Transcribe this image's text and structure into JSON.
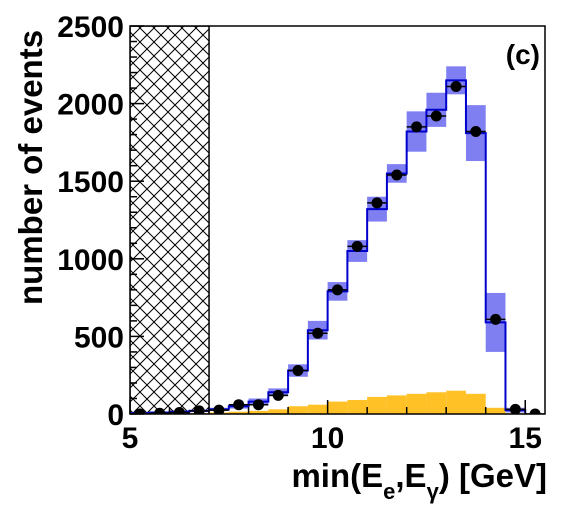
{
  "chart_data": {
    "type": "histogram",
    "panel_label": "(c)",
    "ylabel": "number of events",
    "xlabel": {
      "prefix": "min(E",
      "sub1": "e",
      "mid": ",E",
      "sub2": "γ",
      "suffix": ") [GeV]"
    },
    "xlim": [
      5,
      15.5
    ],
    "ylim": [
      0,
      2500
    ],
    "x_ticks": [
      5,
      10,
      15
    ],
    "y_ticks": [
      0,
      500,
      1000,
      1500,
      2000,
      2500
    ],
    "excluded_region": [
      5,
      7
    ],
    "bin_edges": [
      5.0,
      5.5,
      6.0,
      6.5,
      7.0,
      7.5,
      8.0,
      8.5,
      9.0,
      9.5,
      10.0,
      10.5,
      11.0,
      11.5,
      12.0,
      12.5,
      13.0,
      13.5,
      14.0,
      14.5,
      15.0
    ],
    "series": [
      {
        "kind": "data-points",
        "color": "#000000",
        "x": [
          5.25,
          5.75,
          6.25,
          6.75,
          7.25,
          7.75,
          8.25,
          8.75,
          9.25,
          9.75,
          10.25,
          10.75,
          11.25,
          11.75,
          12.25,
          12.75,
          13.25,
          13.75,
          14.25,
          14.75,
          15.25
        ],
        "values": [
          0,
          5,
          10,
          20,
          25,
          60,
          60,
          120,
          280,
          520,
          800,
          1080,
          1360,
          1540,
          1850,
          1920,
          2110,
          1820,
          610,
          30,
          0
        ]
      },
      {
        "kind": "mc-total",
        "color": "#0000cc",
        "band_color": "#7f7ff2",
        "values": [
          5,
          10,
          15,
          20,
          30,
          50,
          80,
          140,
          280,
          540,
          790,
          1050,
          1320,
          1550,
          1820,
          1960,
          2150,
          1810,
          590,
          25
        ],
        "uncertainty": [
          5,
          5,
          5,
          8,
          10,
          15,
          20,
          25,
          40,
          60,
          60,
          70,
          80,
          60,
          130,
          110,
          90,
          180,
          190,
          15
        ]
      },
      {
        "kind": "background",
        "color": "#ffc125",
        "values": [
          0,
          0,
          0,
          5,
          10,
          15,
          20,
          30,
          50,
          60,
          80,
          90,
          110,
          120,
          130,
          140,
          150,
          130,
          40,
          5
        ]
      }
    ],
    "grid": false
  }
}
